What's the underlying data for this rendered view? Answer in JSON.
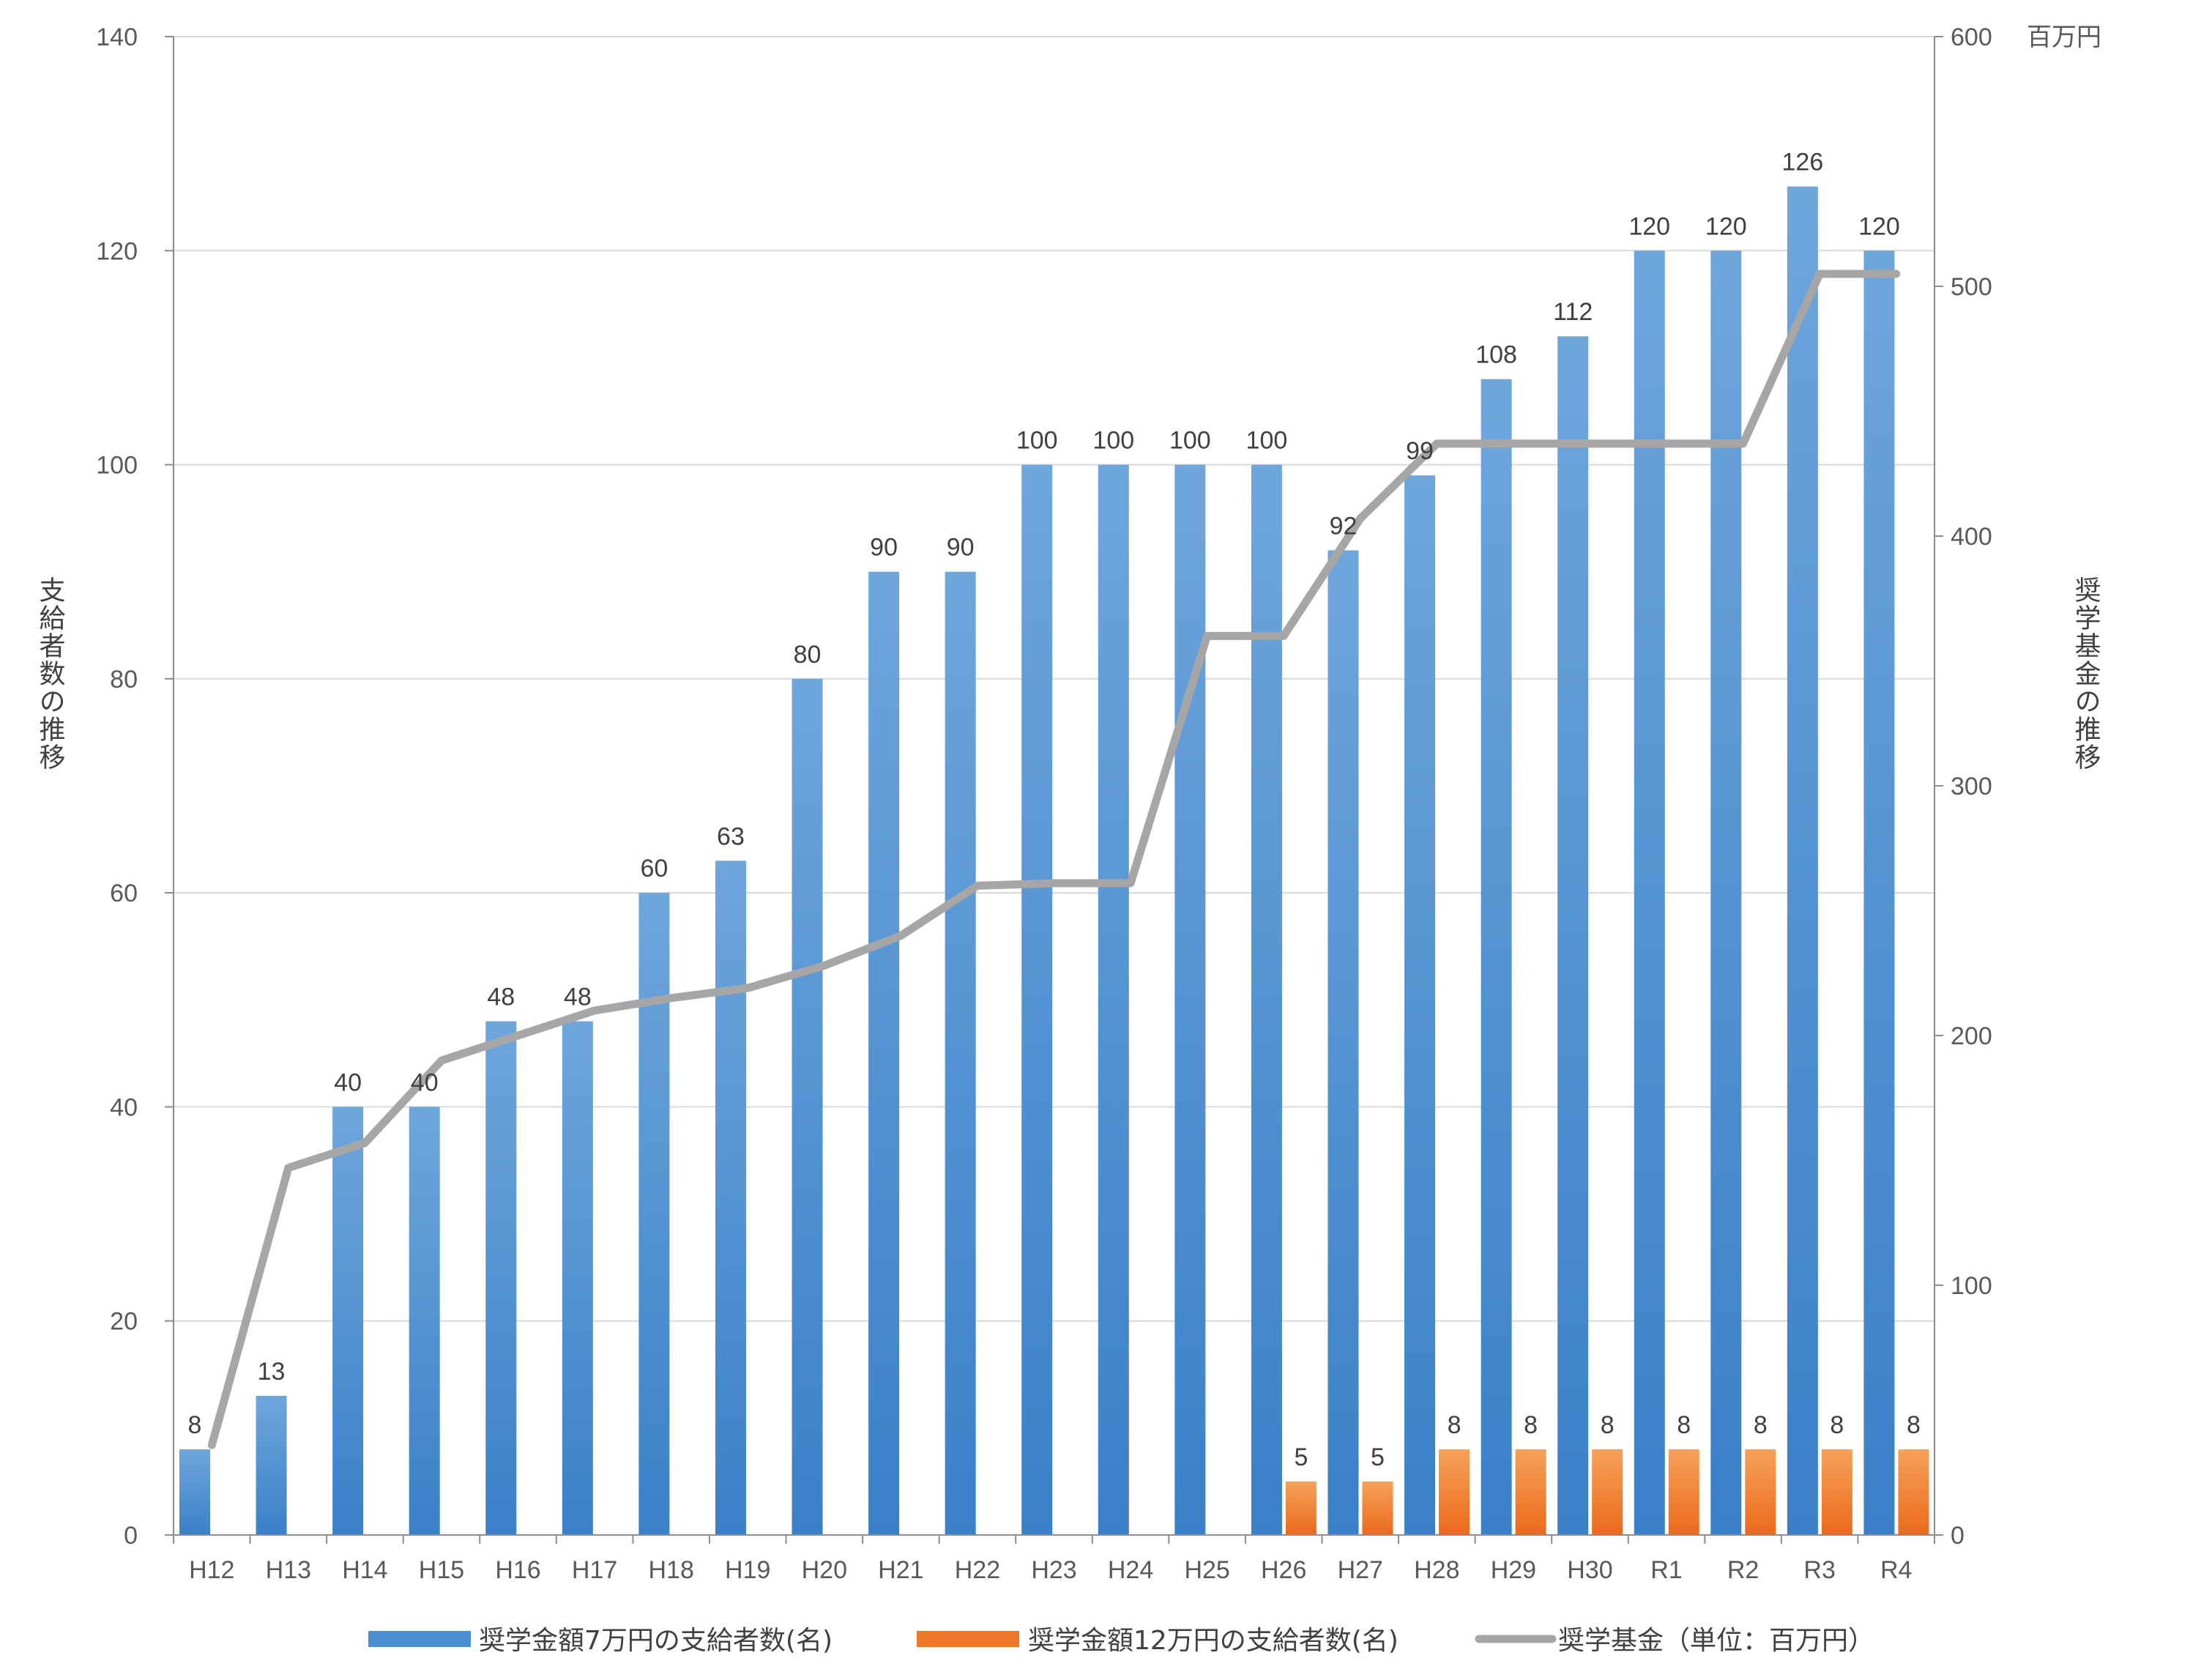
{
  "chart_data": {
    "type": "bar",
    "categories": [
      "H12",
      "H13",
      "H14",
      "H15",
      "H16",
      "H17",
      "H18",
      "H19",
      "H20",
      "H21",
      "H22",
      "H23",
      "H24",
      "H25",
      "H26",
      "H27",
      "H28",
      "H29",
      "H30",
      "R1",
      "R2",
      "R3",
      "R4"
    ],
    "series": [
      {
        "name": "奨学金額7万円の支給者数(名)",
        "type": "bar",
        "axis": "left",
        "color": "#4a8fd3",
        "values": [
          8,
          13,
          40,
          40,
          48,
          48,
          60,
          63,
          80,
          90,
          90,
          100,
          100,
          100,
          100,
          92,
          99,
          108,
          112,
          120,
          120,
          126,
          120
        ],
        "labels": [
          "8",
          "13",
          "40",
          "40",
          "48",
          "48",
          "60",
          "63",
          "80",
          "90",
          "90",
          "100",
          "100",
          "100",
          "100",
          "92",
          "99",
          "108",
          "112",
          "120",
          "120",
          "126",
          "120"
        ]
      },
      {
        "name": "奨学金額12万円の支給者数(名)",
        "type": "bar",
        "axis": "left",
        "color": "#f0782a",
        "values": [
          0,
          0,
          0,
          0,
          0,
          0,
          0,
          0,
          0,
          0,
          0,
          0,
          0,
          0,
          5,
          5,
          8,
          8,
          8,
          8,
          8,
          8,
          8
        ],
        "labels": [
          "",
          "",
          "",
          "",
          "",
          "",
          "",
          "",
          "",
          "",
          "",
          "",
          "",
          "",
          "5",
          "5",
          "8",
          "8",
          "8",
          "8",
          "8",
          "8",
          "8"
        ]
      },
      {
        "name": "奨学基金（単位：百万円）",
        "type": "line",
        "axis": "right",
        "color": "#a6a6a6",
        "values": [
          36,
          147,
          157,
          190,
          200,
          210,
          215,
          219,
          228,
          240,
          260,
          261,
          261,
          360,
          360,
          407,
          437,
          437,
          437,
          437,
          437,
          505,
          505
        ]
      }
    ],
    "left_axis": {
      "title": "支給者数の推移",
      "range": [
        0,
        140
      ],
      "ticks": [
        "0",
        "20",
        "40",
        "60",
        "80",
        "100",
        "120",
        "140"
      ]
    },
    "right_axis": {
      "title": "奨学基金の推移",
      "unit": "百万円",
      "range": [
        0,
        600
      ],
      "ticks": [
        "0",
        "100",
        "200",
        "300",
        "400",
        "500",
        "600"
      ]
    },
    "grid": true,
    "legend_position": "bottom"
  }
}
